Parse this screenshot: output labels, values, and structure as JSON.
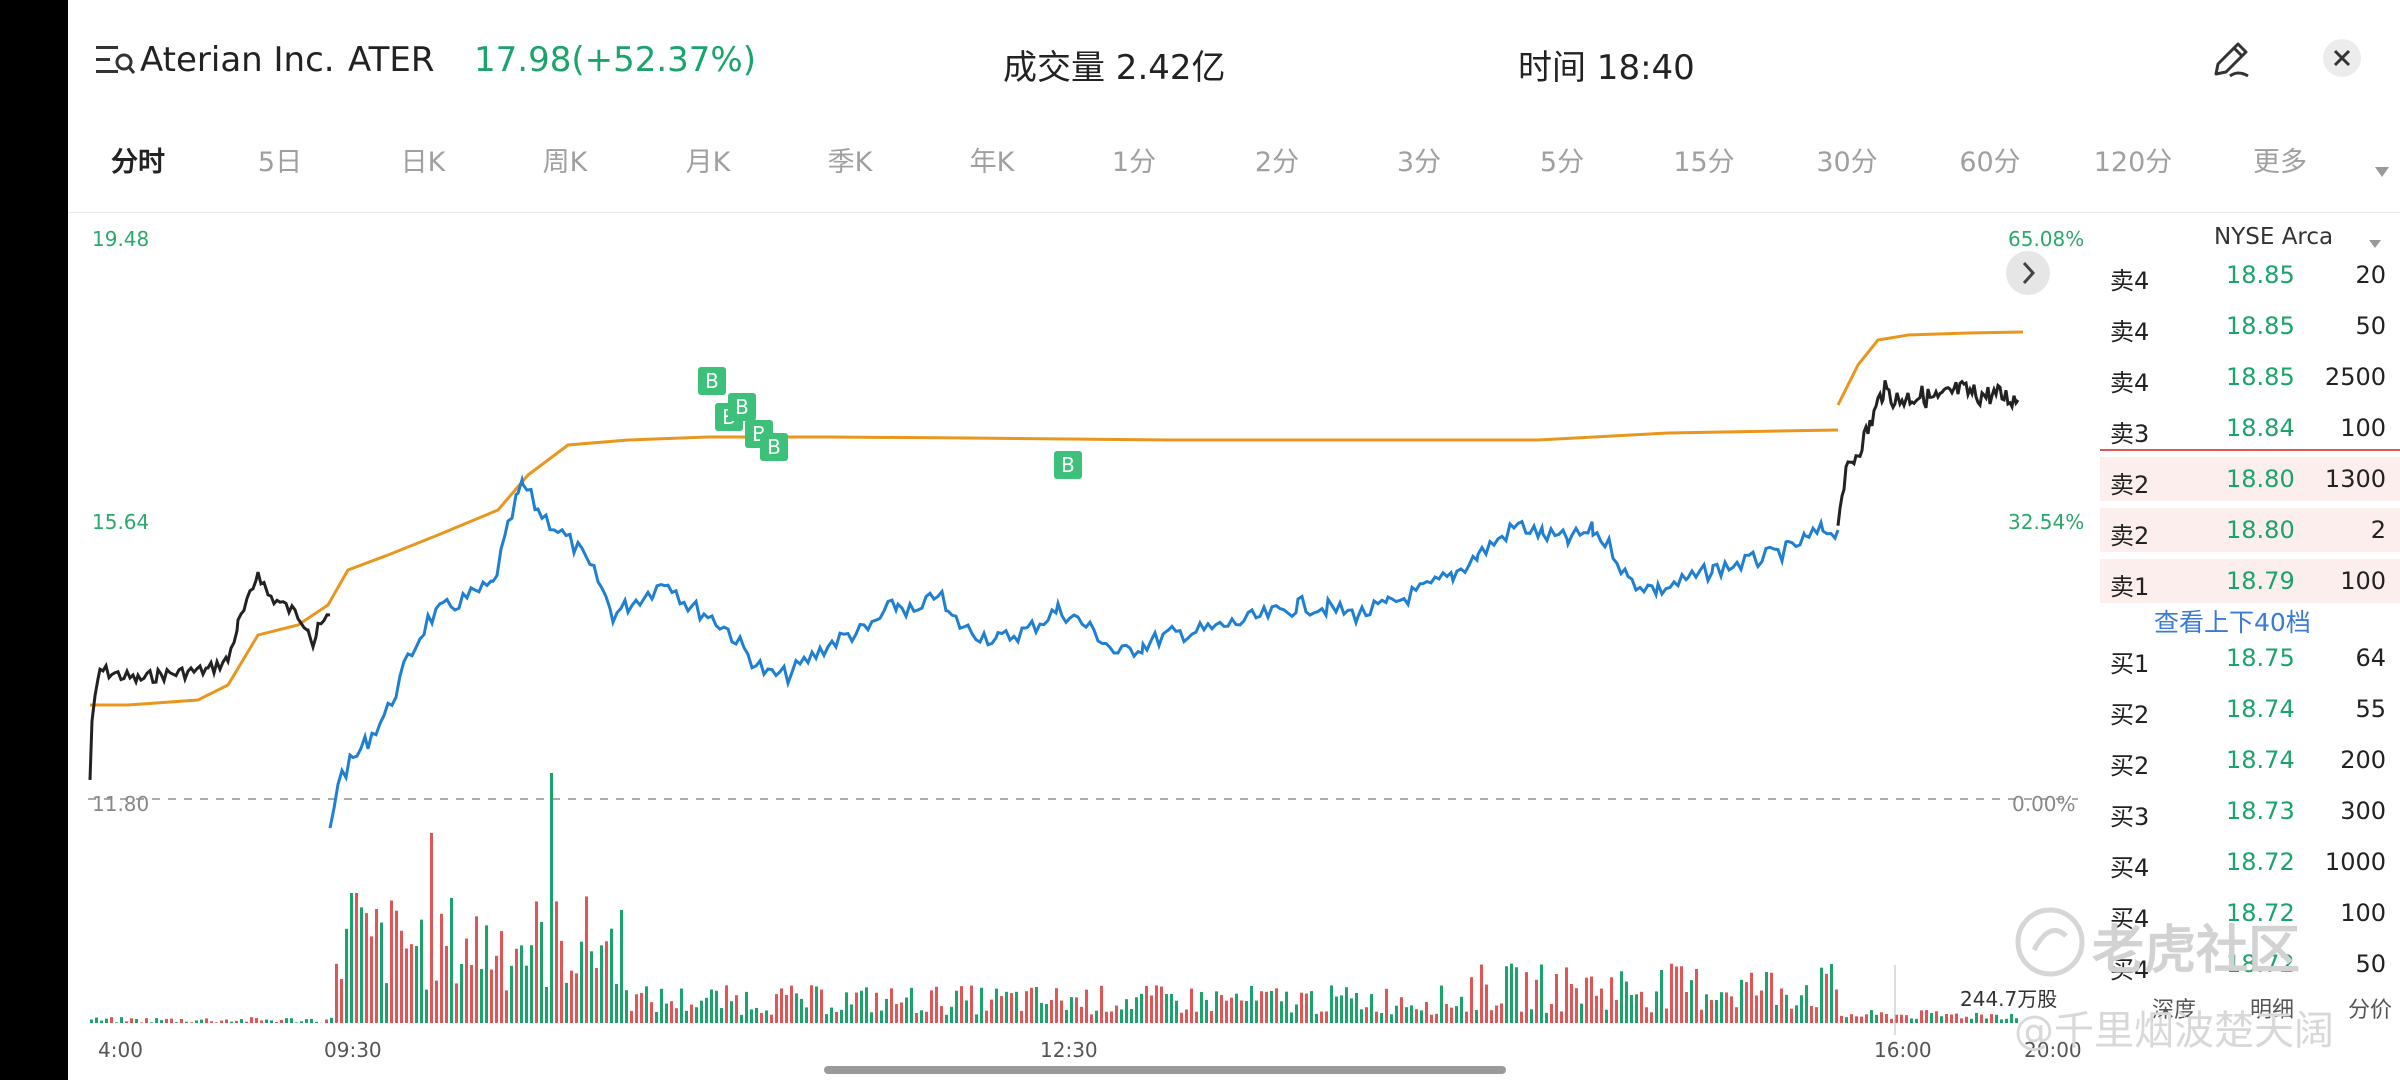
{
  "header": {
    "company": "Aterian Inc.",
    "ticker": "ATER",
    "price_change": "17.98(+52.37%)",
    "volume_label": "成交量 2.42亿",
    "time_label": "时间 18:40"
  },
  "tabs": [
    "分时",
    "5日",
    "日K",
    "周K",
    "月K",
    "季K",
    "年K",
    "1分",
    "2分",
    "3分",
    "5分",
    "15分",
    "30分",
    "60分",
    "120分",
    "更多"
  ],
  "chart": {
    "y_top": "19.48",
    "y_mid": "15.64",
    "y_base": "11.80",
    "pct_top": "65.08%",
    "pct_mid": "32.54%",
    "pct_base": "0.00%",
    "volume_last": "244.7万股",
    "x_labels": [
      "4:00",
      "09:30",
      "12:30",
      "16:00",
      "20:00"
    ],
    "trade_marker": "B"
  },
  "orderbook": {
    "exchange": "NYSE Arca",
    "asks": [
      {
        "side": "卖4",
        "price": "18.85",
        "qty": "20"
      },
      {
        "side": "卖4",
        "price": "18.85",
        "qty": "50"
      },
      {
        "side": "卖4",
        "price": "18.85",
        "qty": "2500"
      },
      {
        "side": "卖3",
        "price": "18.84",
        "qty": "100"
      },
      {
        "side": "卖2",
        "price": "18.80",
        "qty": "1300"
      },
      {
        "side": "卖2",
        "price": "18.80",
        "qty": "2"
      },
      {
        "side": "卖1",
        "price": "18.79",
        "qty": "100"
      }
    ],
    "view_more": "查看上下40档",
    "bids": [
      {
        "side": "买1",
        "price": "18.75",
        "qty": "64"
      },
      {
        "side": "买2",
        "price": "18.74",
        "qty": "55"
      },
      {
        "side": "买2",
        "price": "18.74",
        "qty": "200"
      },
      {
        "side": "买3",
        "price": "18.73",
        "qty": "300"
      },
      {
        "side": "买4",
        "price": "18.72",
        "qty": "1000"
      },
      {
        "side": "买4",
        "price": "18.72",
        "qty": "100"
      },
      {
        "side": "买4",
        "price": "18.72",
        "qty": "50"
      }
    ],
    "footer": [
      "深度",
      "明细",
      "分价"
    ]
  },
  "watermark": {
    "line1": "老虎社区",
    "line2": "@千里烟波楚天阔"
  },
  "colors": {
    "up": "#1aa36a",
    "down": "#e05555",
    "line_regular": "#1f7fd1",
    "line_extended": "#222222",
    "avg_line": "#e8961e",
    "ask_highlight": "#fdeeee"
  }
}
